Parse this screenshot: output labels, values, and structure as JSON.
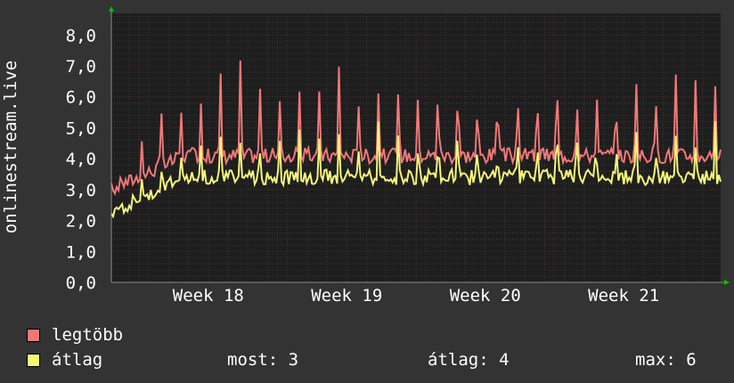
{
  "colors": {
    "background": "#333333",
    "plot_background": "#1e1e1e",
    "grid_major": "#5a2a2a",
    "grid_minor": "#3a3a3a",
    "text": "#ffffff",
    "axis_arrow": "#00c000"
  },
  "legend": {
    "items": [
      {
        "label": "legtöbb",
        "color": "#f07878"
      },
      {
        "label": "átlag",
        "color": "#f5f57a"
      }
    ]
  },
  "stats": {
    "current": "most: 3",
    "average": "átlag: 4",
    "maximum": "max: 6"
  },
  "chart_data": {
    "type": "line",
    "title": "",
    "xlabel": "",
    "ylabel": "onlinestream.live",
    "ylim": [
      0,
      8.7
    ],
    "yticks": [
      "0,0",
      "1,0",
      "2,0",
      "3,0",
      "4,0",
      "5,0",
      "6,0",
      "7,0",
      "8,0"
    ],
    "xticks": [
      "Week 18",
      "Week 19",
      "Week 20",
      "Week 21"
    ],
    "x_range_weeks": [
      17.3,
      21.7
    ],
    "series": [
      {
        "name": "legtöbb",
        "color": "#f07878",
        "base": 4.1,
        "peak": 6.3,
        "low_start": 3.0
      },
      {
        "name": "átlag",
        "color": "#f5f57a",
        "base": 3.4,
        "peak": 4.7,
        "low_start": 2.3
      }
    ],
    "grid": true,
    "legend_position": "bottom-left"
  }
}
